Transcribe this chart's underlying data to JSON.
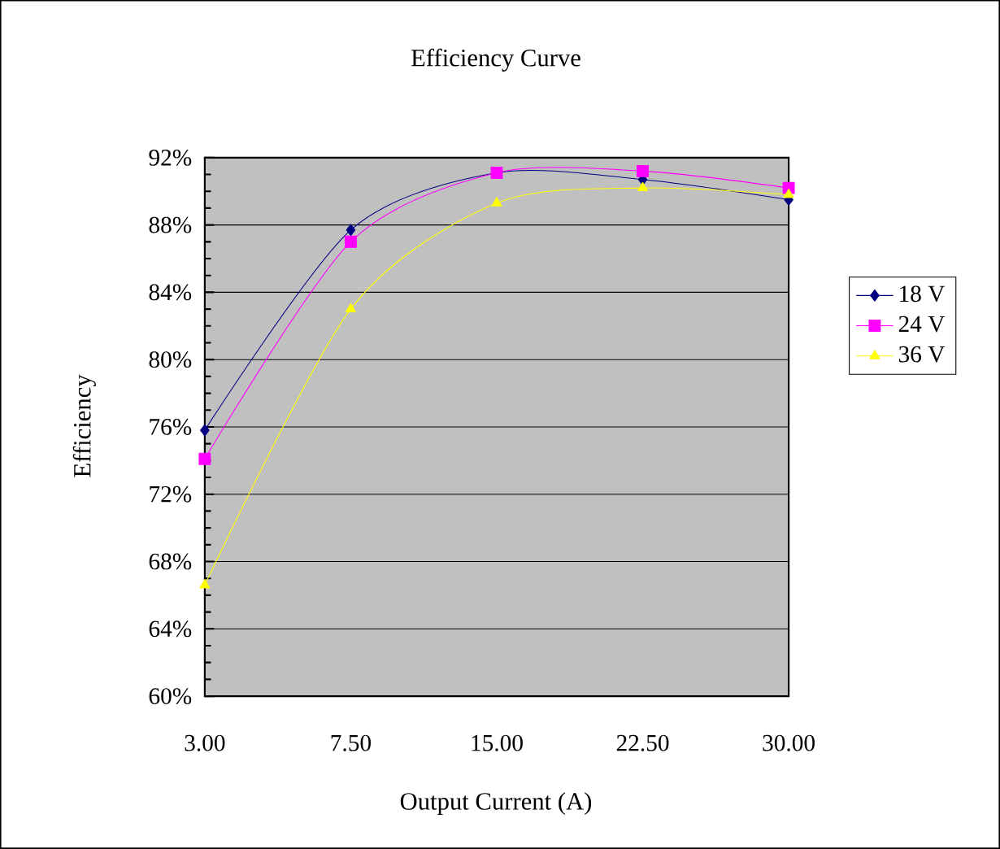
{
  "chart_data": {
    "type": "line",
    "title": "Efficiency Curve",
    "xlabel": "Output Current  (A)",
    "ylabel": "Efficiency",
    "categories": [
      "3.00",
      "7.50",
      "15.00",
      "22.50",
      "30.00"
    ],
    "series": [
      {
        "name": "18 V",
        "color": "#000080",
        "marker": "diamond",
        "values": [
          75.8,
          87.7,
          91.1,
          90.7,
          89.5
        ]
      },
      {
        "name": "24 V",
        "color": "#ff00ff",
        "marker": "square",
        "values": [
          74.1,
          87.0,
          91.1,
          91.2,
          90.2
        ]
      },
      {
        "name": "36 V",
        "color": "#ffff00",
        "marker": "triangle",
        "values": [
          66.6,
          83.0,
          89.3,
          90.2,
          89.8
        ]
      }
    ],
    "ylim": [
      60,
      92
    ],
    "yticks": [
      {
        "value": 60,
        "label": "60%"
      },
      {
        "value": 64,
        "label": "64%"
      },
      {
        "value": 68,
        "label": "68%"
      },
      {
        "value": 72,
        "label": "72%"
      },
      {
        "value": 76,
        "label": "76%"
      },
      {
        "value": 80,
        "label": "80%"
      },
      {
        "value": 84,
        "label": "84%"
      },
      {
        "value": 88,
        "label": "88%"
      },
      {
        "value": 92,
        "label": "92%"
      }
    ],
    "grid": "y",
    "legend": "right"
  }
}
